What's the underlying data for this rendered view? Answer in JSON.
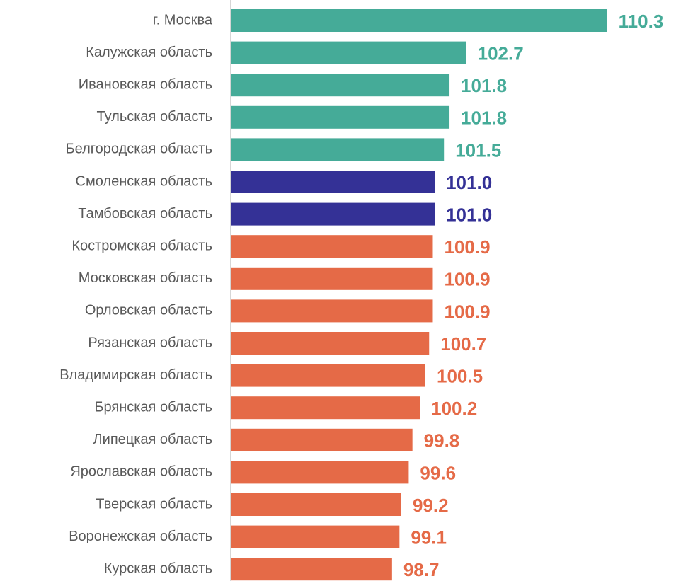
{
  "chart_data": {
    "type": "bar",
    "orientation": "horizontal",
    "categories": [
      "г. Москва",
      "Калужская область",
      "Ивановская область",
      "Тульская область",
      "Белгородская область",
      "Смоленская область",
      "Тамбовская область",
      "Костромская область",
      "Московская область",
      "Орловская область",
      "Рязанская область",
      "Владимирская область",
      "Брянская область",
      "Липецкая область",
      "Ярославская область",
      "Тверская область",
      "Воронежская область",
      "Курская область"
    ],
    "values": [
      110.3,
      102.7,
      101.8,
      101.8,
      101.5,
      101.0,
      101.0,
      100.9,
      100.9,
      100.9,
      100.7,
      100.5,
      100.2,
      99.8,
      99.6,
      99.2,
      99.1,
      98.7
    ],
    "value_labels": [
      "110.3",
      "102.7",
      "101.8",
      "101.8",
      "101.5",
      "101.0",
      "101.0",
      "100.9",
      "100.9",
      "100.9",
      "100.7",
      "100.5",
      "100.2",
      "99.8",
      "99.6",
      "99.2",
      "99.1",
      "98.7"
    ],
    "colors": [
      "#45ab98",
      "#45ab98",
      "#45ab98",
      "#45ab98",
      "#45ab98",
      "#343196",
      "#343196",
      "#e56a47",
      "#e56a47",
      "#e56a47",
      "#e56a47",
      "#e56a47",
      "#e56a47",
      "#e56a47",
      "#e56a47",
      "#e56a47",
      "#e56a47",
      "#e56a47"
    ],
    "xlim": [
      90,
      111
    ]
  }
}
